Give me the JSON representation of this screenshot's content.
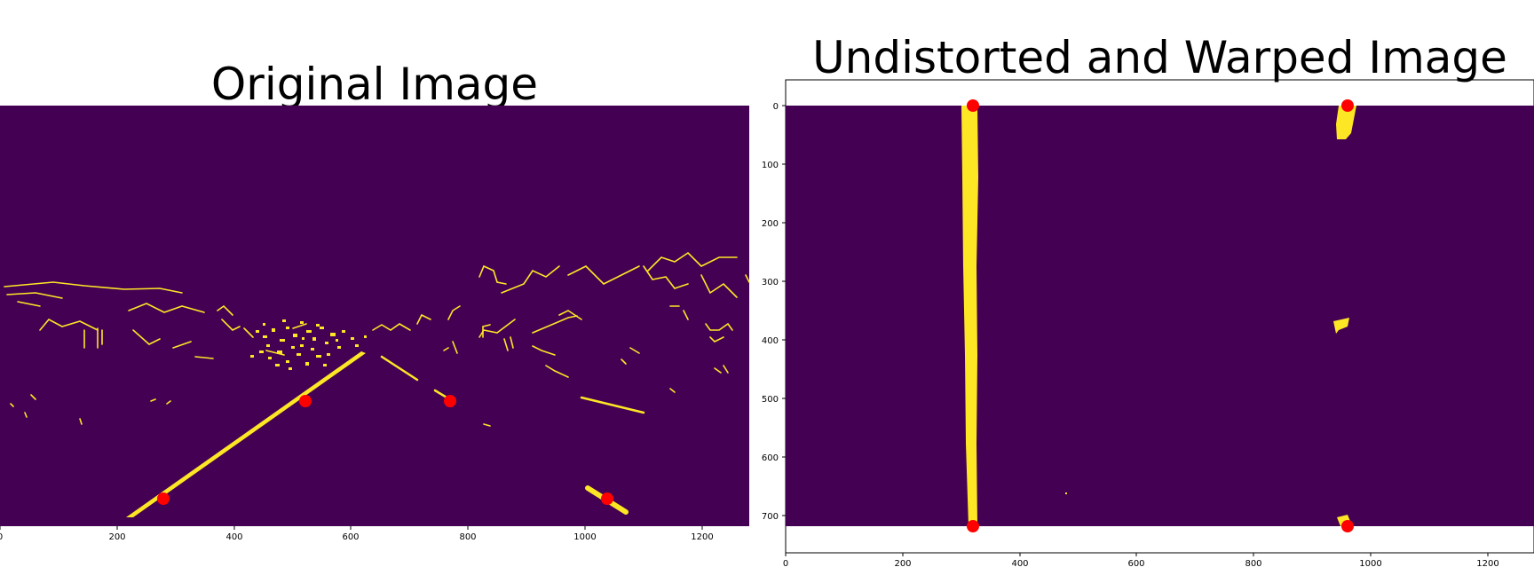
{
  "panels": [
    {
      "title": "Original Image",
      "x_ticks": [
        "0",
        "200",
        "400",
        "600",
        "800",
        "1000",
        "1200"
      ],
      "y_ticks": []
    },
    {
      "title": "Undistorted and Warped Image",
      "x_ticks": [
        "0",
        "200",
        "400",
        "600",
        "800",
        "1000",
        "1200"
      ],
      "y_ticks": [
        "0",
        "100",
        "200",
        "300",
        "400",
        "500",
        "600",
        "700"
      ]
    }
  ],
  "colors": {
    "background": "#440154",
    "lane": "#fde725",
    "marker": "#ff0000"
  }
}
